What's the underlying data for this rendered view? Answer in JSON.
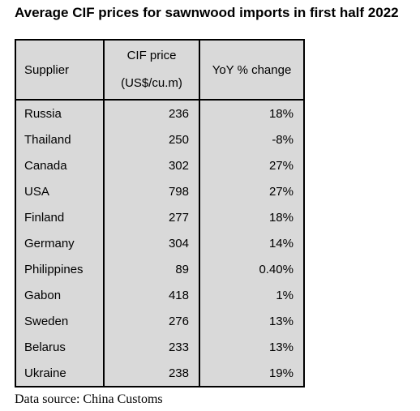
{
  "title": "Average CIF prices for sawnwood imports in first half 2022",
  "table": {
    "headers": {
      "supplier": "Supplier",
      "price_line1": "CIF price",
      "price_line2": "(US$/cu.m)",
      "yoy": "YoY % change"
    },
    "rows": [
      {
        "supplier": "Russia",
        "price": "236",
        "yoy": "18%"
      },
      {
        "supplier": "Thailand",
        "price": "250",
        "yoy": "-8%"
      },
      {
        "supplier": "Canada",
        "price": "302",
        "yoy": "27%"
      },
      {
        "supplier": "USA",
        "price": "798",
        "yoy": "27%"
      },
      {
        "supplier": "Finland",
        "price": "277",
        "yoy": "18%"
      },
      {
        "supplier": "Germany",
        "price": "304",
        "yoy": "14%"
      },
      {
        "supplier": "Philippines",
        "price": "89",
        "yoy": "0.40%"
      },
      {
        "supplier": "Gabon",
        "price": "418",
        "yoy": "1%"
      },
      {
        "supplier": "Sweden",
        "price": "276",
        "yoy": "13%"
      },
      {
        "supplier": "Belarus",
        "price": "233",
        "yoy": "13%"
      },
      {
        "supplier": "Ukraine",
        "price": "238",
        "yoy": "19%"
      }
    ]
  },
  "footer": "Data source: China Customs"
}
